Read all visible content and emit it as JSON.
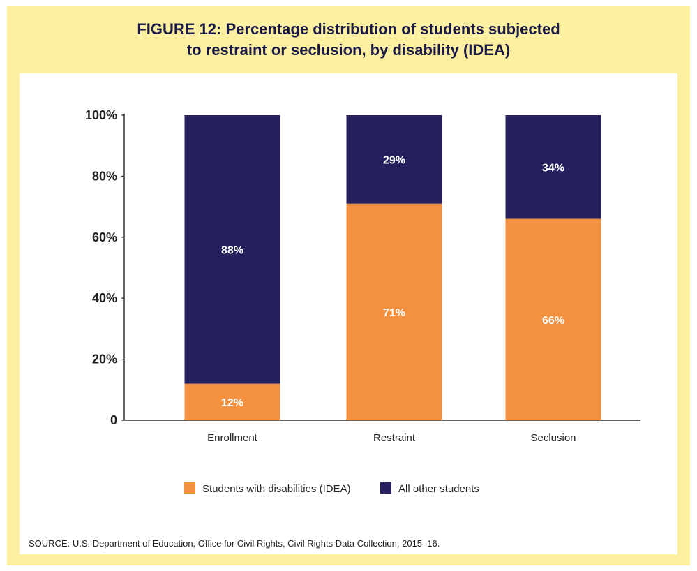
{
  "figure": {
    "title_line1": "FIGURE 12: Percentage distribution of students subjected",
    "title_line2": "to restraint or seclusion, by disability (IDEA)",
    "source": "SOURCE: U.S. Department of Education, Office for Civil Rights, Civil Rights Data Collection, 2015–16."
  },
  "colors": {
    "frame_background": "#fdf0a0",
    "title_text": "#1b1a46",
    "idea": "#f39140",
    "other": "#25215e"
  },
  "chart_data": {
    "type": "bar",
    "stacked": true,
    "title": "FIGURE 12: Percentage distribution of students subjected to restraint or seclusion, by disability (IDEA)",
    "categories": [
      "Enrollment",
      "Restraint",
      "Seclusion"
    ],
    "series": [
      {
        "name": "Students with disabilities (IDEA)",
        "values": [
          12,
          71,
          66
        ],
        "labels": [
          "12%",
          "71%",
          "66%"
        ],
        "color": "#f39140"
      },
      {
        "name": "All other students",
        "values": [
          88,
          29,
          34
        ],
        "labels": [
          "88%",
          "29%",
          "34%"
        ],
        "color": "#25215e"
      }
    ],
    "ylim": [
      0,
      100
    ],
    "yticks": [
      {
        "value": 0,
        "label": "0"
      },
      {
        "value": 20,
        "label": "20%"
      },
      {
        "value": 40,
        "label": "40%"
      },
      {
        "value": 60,
        "label": "60%"
      },
      {
        "value": 80,
        "label": "80%"
      },
      {
        "value": 100,
        "label": "100%"
      }
    ],
    "xlabel": "",
    "ylabel": "",
    "grid": false,
    "legend_position": "bottom"
  }
}
